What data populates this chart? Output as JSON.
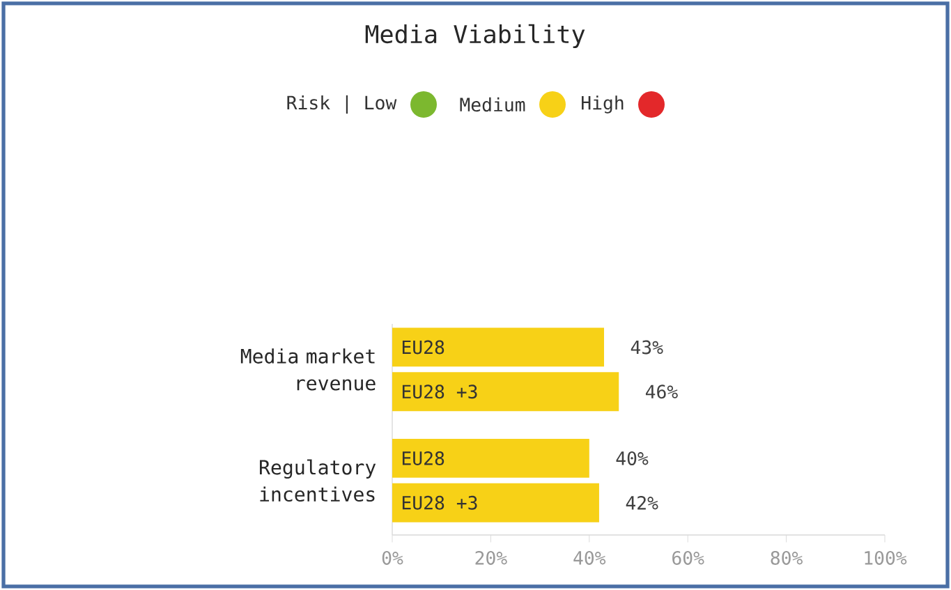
{
  "chart_data": {
    "type": "bar",
    "orientation": "horizontal",
    "title": "Media Viability",
    "annotations": [
      "Risk | Low",
      "Medium",
      "High"
    ],
    "categories": [
      "Media market revenue",
      "Regulatory incentives"
    ],
    "series": [
      {
        "name": "EU28",
        "color": "#f7d117",
        "values": [
          43,
          40
        ],
        "value_labels": [
          "43%",
          "40%"
        ]
      },
      {
        "name": "EU28 +3",
        "color": "#f7d117",
        "values": [
          46,
          42
        ],
        "value_labels": [
          "46%",
          "42%"
        ]
      }
    ],
    "xlim": [
      0,
      100
    ],
    "xticks": [
      {
        "value": 0,
        "label": "0%"
      },
      {
        "value": 20,
        "label": "20%"
      },
      {
        "value": 40,
        "label": "40%"
      },
      {
        "value": 60,
        "label": "60%"
      },
      {
        "value": 80,
        "label": "80%"
      },
      {
        "value": 100,
        "label": "100%"
      }
    ]
  }
}
